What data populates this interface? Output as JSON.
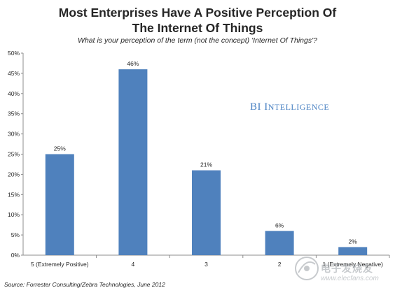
{
  "chart_data": {
    "type": "bar",
    "title": "Most Enterprises Have A Positive Perception Of The Internet Of Things",
    "title_lines": [
      "Most Enterprises Have A Positive Perception Of",
      "The Internet Of Things"
    ],
    "subtitle": "What is your perception of the term (not the concept) 'Internet Of Things'?",
    "categories": [
      "5 (Extremely Positive)",
      "4",
      "3",
      "2",
      "1 (Extremely Negative)"
    ],
    "values": [
      25,
      46,
      21,
      6,
      2
    ],
    "value_labels": [
      "25%",
      "46%",
      "21%",
      "6%",
      "2%"
    ],
    "ylim": [
      0,
      50
    ],
    "yticks": [
      0,
      5,
      10,
      15,
      20,
      25,
      30,
      35,
      40,
      45,
      50
    ],
    "ytick_labels": [
      "0%",
      "5%",
      "10%",
      "15%",
      "20%",
      "25%",
      "30%",
      "35%",
      "40%",
      "45%",
      "50%"
    ],
    "xlabel": "",
    "ylabel": "",
    "grid": false,
    "bar_color": "#4f81bd",
    "source": "Source: Forrester Consulting/Zebra Technologies, June 2012"
  },
  "branding": {
    "bi_prefix": "BI I",
    "bi_rest": "NTELLIGENCE",
    "brand_color": "#4a82c3"
  },
  "watermark": {
    "name": "电子发烧友",
    "url": "www.elecfans.com"
  }
}
